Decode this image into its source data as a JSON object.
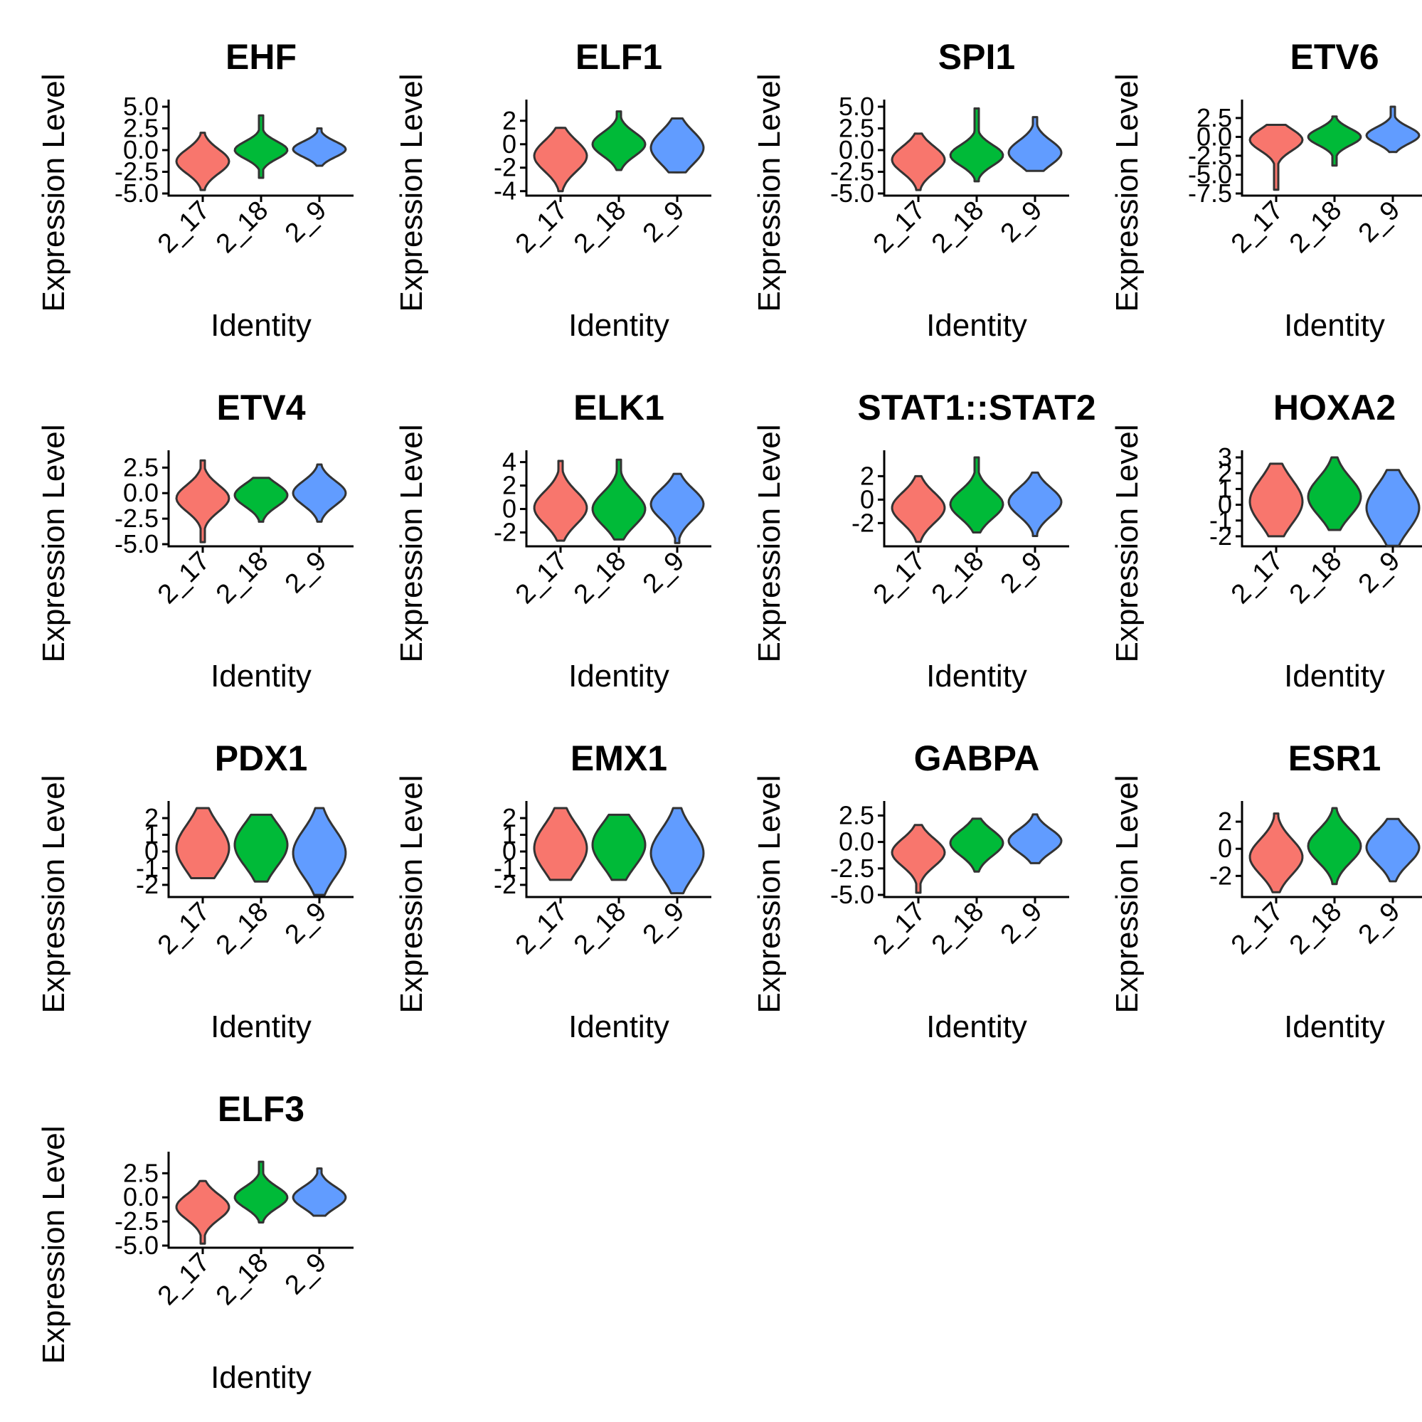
{
  "colors": {
    "2_17": "#F8766D",
    "2_18": "#00BA38",
    "2_9": "#619CFF"
  },
  "chart_data": [
    {
      "type": "violin",
      "title": "EHF",
      "xlabel": "Identity",
      "ylabel": "Expression Level",
      "categories": [
        "2_17",
        "2_18",
        "2_9"
      ],
      "yticks": [
        "-5.0",
        "-2.5",
        "0.0",
        "2.5",
        "5.0"
      ],
      "ylim": [
        -5.0,
        5.0
      ],
      "series": [
        {
          "category": "2_17",
          "min": -4.6,
          "max": 2.0,
          "peak": -1.3,
          "spread": 1.4
        },
        {
          "category": "2_18",
          "min": -3.2,
          "max": 4.0,
          "peak": 0.0,
          "spread": 1.0
        },
        {
          "category": "2_9",
          "min": -1.8,
          "max": 2.5,
          "peak": 0.1,
          "spread": 0.9
        }
      ]
    },
    {
      "type": "violin",
      "title": "ELF1",
      "xlabel": "Identity",
      "ylabel": "Expression Level",
      "categories": [
        "2_17",
        "2_18",
        "2_9"
      ],
      "yticks": [
        "-4",
        "-2",
        "0",
        "2"
      ],
      "ylim": [
        -4.2,
        3.2
      ],
      "series": [
        {
          "category": "2_17",
          "min": -4.0,
          "max": 1.4,
          "peak": -1.0,
          "spread": 1.3
        },
        {
          "category": "2_18",
          "min": -2.2,
          "max": 2.8,
          "peak": 0.0,
          "spread": 1.0
        },
        {
          "category": "2_9",
          "min": -2.4,
          "max": 2.2,
          "peak": -0.3,
          "spread": 1.4
        }
      ]
    },
    {
      "type": "violin",
      "title": "SPI1",
      "xlabel": "Identity",
      "ylabel": "Expression Level",
      "categories": [
        "2_17",
        "2_18",
        "2_9"
      ],
      "yticks": [
        "-5.0",
        "-2.5",
        "0.0",
        "2.5",
        "5.0"
      ],
      "ylim": [
        -5.0,
        5.0
      ],
      "series": [
        {
          "category": "2_17",
          "min": -4.6,
          "max": 1.9,
          "peak": -1.1,
          "spread": 1.5
        },
        {
          "category": "2_18",
          "min": -3.6,
          "max": 4.8,
          "peak": -0.6,
          "spread": 1.2
        },
        {
          "category": "2_9",
          "min": -2.4,
          "max": 3.8,
          "peak": -0.3,
          "spread": 1.4
        }
      ]
    },
    {
      "type": "violin",
      "title": "ETV6",
      "xlabel": "Identity",
      "ylabel": "Expression Level",
      "categories": [
        "2_17",
        "2_18",
        "2_9"
      ],
      "yticks": [
        "-7.5",
        "-5.0",
        "-2.5",
        "0.0",
        "2.5"
      ],
      "ylim": [
        -7.5,
        4.0
      ],
      "series": [
        {
          "category": "2_17",
          "min": -7.0,
          "max": 1.6,
          "peak": -0.4,
          "spread": 1.4
        },
        {
          "category": "2_18",
          "min": -3.8,
          "max": 2.7,
          "peak": 0.0,
          "spread": 1.1
        },
        {
          "category": "2_9",
          "min": -2.0,
          "max": 4.0,
          "peak": 0.2,
          "spread": 1.1
        }
      ]
    },
    {
      "type": "violin",
      "title": "ETV4",
      "xlabel": "Identity",
      "ylabel": "Expression Level",
      "categories": [
        "2_17",
        "2_18",
        "2_9"
      ],
      "yticks": [
        "-5.0",
        "-2.5",
        "0.0",
        "2.5"
      ],
      "ylim": [
        -5.0,
        3.5
      ],
      "series": [
        {
          "category": "2_17",
          "min": -4.8,
          "max": 3.2,
          "peak": -0.5,
          "spread": 1.3
        },
        {
          "category": "2_18",
          "min": -2.8,
          "max": 1.5,
          "peak": -0.2,
          "spread": 1.1
        },
        {
          "category": "2_9",
          "min": -2.8,
          "max": 2.8,
          "peak": 0.0,
          "spread": 1.2
        }
      ]
    },
    {
      "type": "violin",
      "title": "ELK1",
      "xlabel": "Identity",
      "ylabel": "Expression Level",
      "categories": [
        "2_17",
        "2_18",
        "2_9"
      ],
      "yticks": [
        "-2",
        "0",
        "2",
        "4"
      ],
      "ylim": [
        -3.0,
        4.4
      ],
      "series": [
        {
          "category": "2_17",
          "min": -2.7,
          "max": 4.1,
          "peak": 0.1,
          "spread": 1.4
        },
        {
          "category": "2_18",
          "min": -2.6,
          "max": 4.2,
          "peak": 0.0,
          "spread": 1.4
        },
        {
          "category": "2_9",
          "min": -2.9,
          "max": 3.0,
          "peak": 0.4,
          "spread": 1.3
        }
      ]
    },
    {
      "type": "violin",
      "title": "STAT1::STAT2",
      "xlabel": "Identity",
      "ylabel": "Expression Level",
      "categories": [
        "2_17",
        "2_18",
        "2_9"
      ],
      "yticks": [
        "-2",
        "0",
        "2"
      ],
      "ylim": [
        -3.8,
        3.6
      ],
      "series": [
        {
          "category": "2_17",
          "min": -3.6,
          "max": 2.0,
          "peak": -0.7,
          "spread": 1.3
        },
        {
          "category": "2_18",
          "min": -2.8,
          "max": 3.6,
          "peak": -0.4,
          "spread": 1.2
        },
        {
          "category": "2_9",
          "min": -3.1,
          "max": 2.3,
          "peak": -0.2,
          "spread": 1.2
        }
      ]
    },
    {
      "type": "violin",
      "title": "HOXA2",
      "xlabel": "Identity",
      "ylabel": "Expression Level",
      "categories": [
        "2_17",
        "2_18",
        "2_9"
      ],
      "yticks": [
        "-2",
        "-1",
        "0",
        "1",
        "2",
        "3"
      ],
      "ylim": [
        -2.5,
        3.0
      ],
      "series": [
        {
          "category": "2_17",
          "min": -2.0,
          "max": 2.6,
          "peak": 0.2,
          "spread": 1.4
        },
        {
          "category": "2_18",
          "min": -1.6,
          "max": 3.0,
          "peak": 0.5,
          "spread": 1.2
        },
        {
          "category": "2_9",
          "min": -2.6,
          "max": 2.2,
          "peak": -0.2,
          "spread": 1.4
        }
      ]
    },
    {
      "type": "violin",
      "title": "PDX1",
      "xlabel": "Identity",
      "ylabel": "Expression Level",
      "categories": [
        "2_17",
        "2_18",
        "2_9"
      ],
      "yticks": [
        "-2",
        "-1",
        "0",
        "1",
        "2"
      ],
      "ylim": [
        -2.6,
        2.6
      ],
      "series": [
        {
          "category": "2_17",
          "min": -1.6,
          "max": 2.6,
          "peak": 0.2,
          "spread": 1.4
        },
        {
          "category": "2_18",
          "min": -1.8,
          "max": 2.2,
          "peak": 0.4,
          "spread": 1.3
        },
        {
          "category": "2_9",
          "min": -2.6,
          "max": 2.6,
          "peak": -0.1,
          "spread": 1.4
        }
      ]
    },
    {
      "type": "violin",
      "title": "EMX1",
      "xlabel": "Identity",
      "ylabel": "Expression Level",
      "categories": [
        "2_17",
        "2_18",
        "2_9"
      ],
      "yticks": [
        "-2",
        "-1",
        "0",
        "1",
        "2"
      ],
      "ylim": [
        -2.6,
        2.6
      ],
      "series": [
        {
          "category": "2_17",
          "min": -1.7,
          "max": 2.6,
          "peak": 0.2,
          "spread": 1.4
        },
        {
          "category": "2_18",
          "min": -1.7,
          "max": 2.2,
          "peak": 0.4,
          "spread": 1.3
        },
        {
          "category": "2_9",
          "min": -2.5,
          "max": 2.6,
          "peak": -0.1,
          "spread": 1.4
        }
      ]
    },
    {
      "type": "violin",
      "title": "GABPA",
      "xlabel": "Identity",
      "ylabel": "Expression Level",
      "categories": [
        "2_17",
        "2_18",
        "2_9"
      ],
      "yticks": [
        "-5.0",
        "-2.5",
        "0.0",
        "2.5"
      ],
      "ylim": [
        -5.0,
        3.2
      ],
      "series": [
        {
          "category": "2_17",
          "min": -4.8,
          "max": 1.6,
          "peak": -1.0,
          "spread": 1.3
        },
        {
          "category": "2_18",
          "min": -2.8,
          "max": 2.2,
          "peak": -0.1,
          "spread": 1.2
        },
        {
          "category": "2_9",
          "min": -2.0,
          "max": 2.6,
          "peak": 0.1,
          "spread": 1.1
        }
      ]
    },
    {
      "type": "violin",
      "title": "ESR1",
      "xlabel": "Identity",
      "ylabel": "Expression Level",
      "categories": [
        "2_17",
        "2_18",
        "2_9"
      ],
      "yticks": [
        "-2",
        "0",
        "2"
      ],
      "ylim": [
        -3.4,
        3.0
      ],
      "series": [
        {
          "category": "2_17",
          "min": -3.2,
          "max": 2.6,
          "peak": -0.6,
          "spread": 1.3
        },
        {
          "category": "2_18",
          "min": -2.6,
          "max": 3.0,
          "peak": 0.2,
          "spread": 1.2
        },
        {
          "category": "2_9",
          "min": -2.4,
          "max": 2.2,
          "peak": 0.1,
          "spread": 1.2
        }
      ]
    },
    {
      "type": "violin",
      "title": "ELF3",
      "xlabel": "Identity",
      "ylabel": "Expression Level",
      "categories": [
        "2_17",
        "2_18",
        "2_9"
      ],
      "yticks": [
        "-5.0",
        "-2.5",
        "0.0",
        "2.5"
      ],
      "ylim": [
        -5.0,
        4.0
      ],
      "series": [
        {
          "category": "2_17",
          "min": -4.8,
          "max": 1.7,
          "peak": -1.0,
          "spread": 1.3
        },
        {
          "category": "2_18",
          "min": -2.6,
          "max": 3.7,
          "peak": 0.0,
          "spread": 1.1
        },
        {
          "category": "2_9",
          "min": -1.9,
          "max": 3.0,
          "peak": 0.0,
          "spread": 1.1
        }
      ]
    }
  ]
}
